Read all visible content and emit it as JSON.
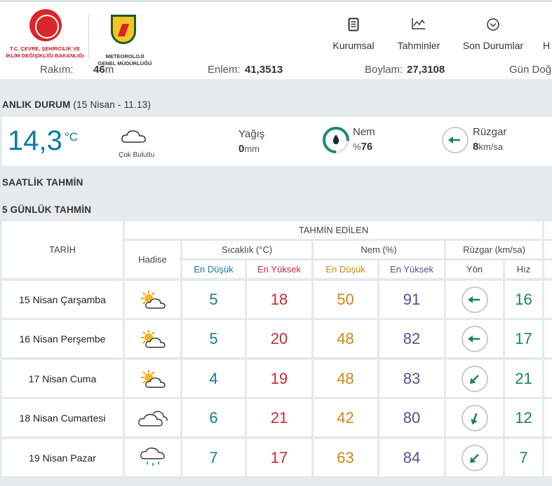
{
  "header": {
    "ministry_logo_text": "T.C. ÇEVRE, ŞEHİRCİLİK VE İKLİM DEĞİŞİKLİĞİ BAKANLIĞI",
    "met_logo_text": "METEOROLOJİ GENEL MÜDÜRLÜĞÜ",
    "nav": [
      {
        "label": "Kurumsal",
        "icon": "document-icon"
      },
      {
        "label": "Tahminler",
        "icon": "chart-icon"
      },
      {
        "label": "Son Durumlar",
        "icon": "chevron-circle-icon"
      },
      {
        "label": "H",
        "icon": ""
      }
    ]
  },
  "location": {
    "altitude_label": "Rakım:",
    "altitude_value": "46",
    "altitude_unit": "m",
    "lat_label": "Enlem:",
    "lat_value": "41,3513",
    "lon_label": "Boylam:",
    "lon_value": "27,3108",
    "sunrise_label": "Gün Doğ"
  },
  "current": {
    "title": "ANLIK DURUM",
    "timestamp": "(15 Nisan - 11.13)",
    "temperature": "14,3",
    "temp_unit": "°C",
    "condition": "Çok Bulutlu",
    "precip_label": "Yağış",
    "precip_value": "0",
    "precip_unit": "mm",
    "humidity_label": "Nem",
    "humidity_prefix": "%",
    "humidity_value": "76",
    "humidity_fraction": 0.76,
    "wind_label": "Rüzgar",
    "wind_value": "8",
    "wind_unit": "km/sa",
    "accent": "#0b7aa8"
  },
  "hourly_title": "SAATLİK TAHMİN",
  "daily": {
    "title": "5 GÜNLÜK TAHMİN",
    "headers": {
      "date": "TARİH",
      "predicted": "TAHMİN EDİLEN",
      "event": "Hadise",
      "temp": "Sıcaklık (°C)",
      "humidity": "Nem (%)",
      "wind": "Rüzgar (km/sa)",
      "low": "En Düşük",
      "high": "En Yüksek",
      "hlow": "En Düşük",
      "hhigh": "En Yüksek",
      "dir": "Yön",
      "speed": "Hız"
    },
    "rows": [
      {
        "date": "15 Nisan Çarşamba",
        "icon": "partly-sunny-icon",
        "tmin": "5",
        "tmax": "18",
        "hmin": "50",
        "hmax": "91",
        "wind_deg": 270,
        "wind_speed": "16"
      },
      {
        "date": "16 Nisan Perşembe",
        "icon": "partly-sunny-icon",
        "tmin": "5",
        "tmax": "20",
        "hmin": "48",
        "hmax": "82",
        "wind_deg": 270,
        "wind_speed": "17"
      },
      {
        "date": "17 Nisan Cuma",
        "icon": "partly-sunny-icon",
        "tmin": "4",
        "tmax": "19",
        "hmin": "48",
        "hmax": "83",
        "wind_deg": 225,
        "wind_speed": "21"
      },
      {
        "date": "18 Nisan Cumartesi",
        "icon": "cloudy-icon",
        "tmin": "6",
        "tmax": "21",
        "hmin": "42",
        "hmax": "80",
        "wind_deg": 200,
        "wind_speed": "12"
      },
      {
        "date": "19 Nisan Pazar",
        "icon": "rain-icon",
        "tmin": "7",
        "tmax": "17",
        "hmin": "63",
        "hmax": "84",
        "wind_deg": 225,
        "wind_speed": "7"
      }
    ]
  }
}
